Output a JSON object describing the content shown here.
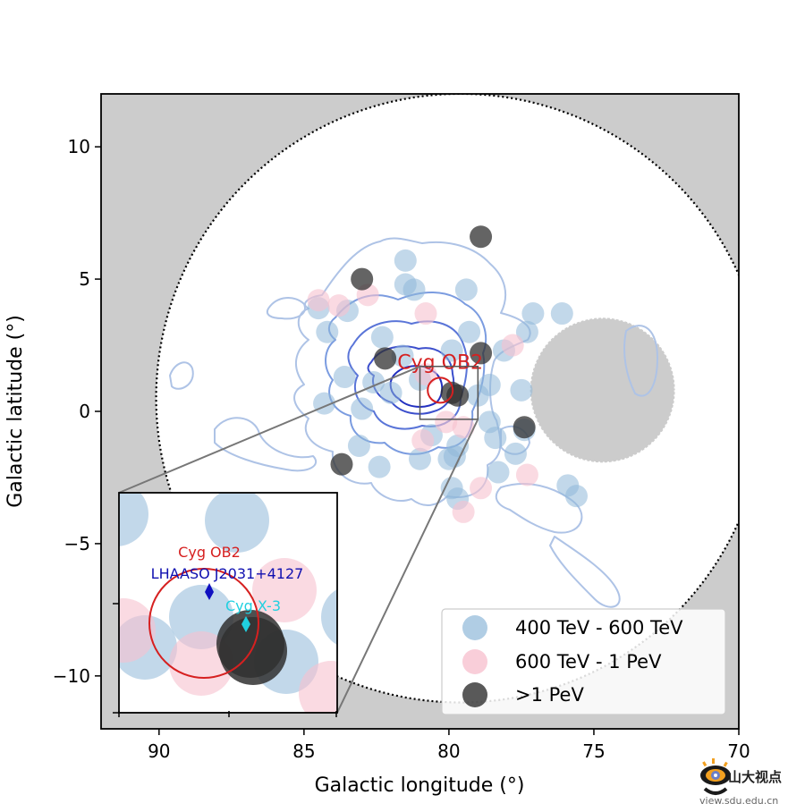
{
  "chart_data": {
    "type": "scatter",
    "xlabel": "Galactic longitude (°)",
    "ylabel": "Galactic latitude (°)",
    "xlim": [
      92,
      70
    ],
    "ylim": [
      -12,
      12
    ],
    "x_ticks": [
      90,
      85,
      80,
      75,
      70
    ],
    "y_ticks": [
      10,
      5,
      0,
      -5,
      -10
    ],
    "background_color": "#cccccc",
    "field_of_view": {
      "center": [
        79.6,
        0.5
      ],
      "radius": 10.5,
      "style": "dotted",
      "fill": "#ffffff"
    },
    "masked_region": {
      "center": [
        74.7,
        0.8
      ],
      "radius": 2.5,
      "fill": "#cccccc"
    },
    "legend": {
      "position": "lower right",
      "entries": [
        {
          "label": "400 TeV - 600 TeV",
          "color": "#8fb8d9"
        },
        {
          "label": "600 TeV - 1 PeV",
          "color": "#f7c2cf"
        },
        {
          "label": ">1 PeV",
          "color": "#303030"
        }
      ]
    },
    "series": [
      {
        "name": "400 TeV - 600 TeV",
        "color": "#8fb8d9",
        "points": [
          [
            81.5,
            5.7
          ],
          [
            81.5,
            4.8
          ],
          [
            81.2,
            4.6
          ],
          [
            79.4,
            4.6
          ],
          [
            84.5,
            3.9
          ],
          [
            83.5,
            3.8
          ],
          [
            77.1,
            3.7
          ],
          [
            76.1,
            3.7
          ],
          [
            84.2,
            3.0
          ],
          [
            82.3,
            2.8
          ],
          [
            79.3,
            3.0
          ],
          [
            77.3,
            3.0
          ],
          [
            78.1,
            2.3
          ],
          [
            79.9,
            2.3
          ],
          [
            81.6,
            2.1
          ],
          [
            82.6,
            1.1
          ],
          [
            83.6,
            1.3
          ],
          [
            81.0,
            1.2
          ],
          [
            78.6,
            1.0
          ],
          [
            77.5,
            0.8
          ],
          [
            84.3,
            0.3
          ],
          [
            82.0,
            0.7
          ],
          [
            79.0,
            0.6
          ],
          [
            83.0,
            0.1
          ],
          [
            78.6,
            -0.4
          ],
          [
            77.4,
            -0.7
          ],
          [
            80.6,
            -0.9
          ],
          [
            78.4,
            -1.0
          ],
          [
            79.7,
            -1.3
          ],
          [
            83.1,
            -1.3
          ],
          [
            81.0,
            -1.8
          ],
          [
            79.8,
            -1.7
          ],
          [
            80.0,
            -1.8
          ],
          [
            77.7,
            -1.6
          ],
          [
            82.4,
            -2.1
          ],
          [
            78.3,
            -2.3
          ],
          [
            79.9,
            -2.9
          ],
          [
            75.9,
            -2.8
          ],
          [
            79.7,
            -3.3
          ],
          [
            75.6,
            -3.2
          ]
        ]
      },
      {
        "name": "600 TeV - 1 PeV",
        "color": "#f7c2cf",
        "points": [
          [
            84.5,
            4.2
          ],
          [
            83.8,
            4.0
          ],
          [
            82.8,
            4.4
          ],
          [
            80.8,
            3.7
          ],
          [
            77.8,
            2.5
          ],
          [
            80.8,
            1.4
          ],
          [
            80.9,
            -1.1
          ],
          [
            79.5,
            -0.6
          ],
          [
            80.1,
            -0.4
          ],
          [
            77.3,
            -2.4
          ],
          [
            78.9,
            -2.9
          ],
          [
            79.5,
            -3.8
          ]
        ]
      },
      {
        "name": ">1 PeV",
        "color": "#303030",
        "points": [
          [
            78.9,
            6.6
          ],
          [
            83.0,
            5.0
          ],
          [
            78.9,
            2.2
          ],
          [
            82.2,
            2.0
          ],
          [
            79.9,
            0.7
          ],
          [
            79.7,
            0.6
          ],
          [
            77.4,
            -0.6
          ],
          [
            83.7,
            -2.0
          ]
        ]
      }
    ],
    "annotations": {
      "cyg_ob2_label": "Cyg OB2",
      "cyg_ob2_color": "#d62020",
      "box_center": [
        80.0,
        0.7
      ],
      "box_halfwidth": 1.0,
      "inset_labels": {
        "cyg_ob2": "Cyg OB2",
        "lhaaso": "LHAASO J2031+4127",
        "cygx3": "Cyg X-3"
      },
      "inset_label_colors": {
        "cyg_ob2": "#d62020",
        "lhaaso": "#1010b0",
        "cygx3": "#20d0e0"
      }
    }
  },
  "watermark": {
    "cn_text": "山大视点",
    "url_text": "view.sdu.edu.cn"
  }
}
